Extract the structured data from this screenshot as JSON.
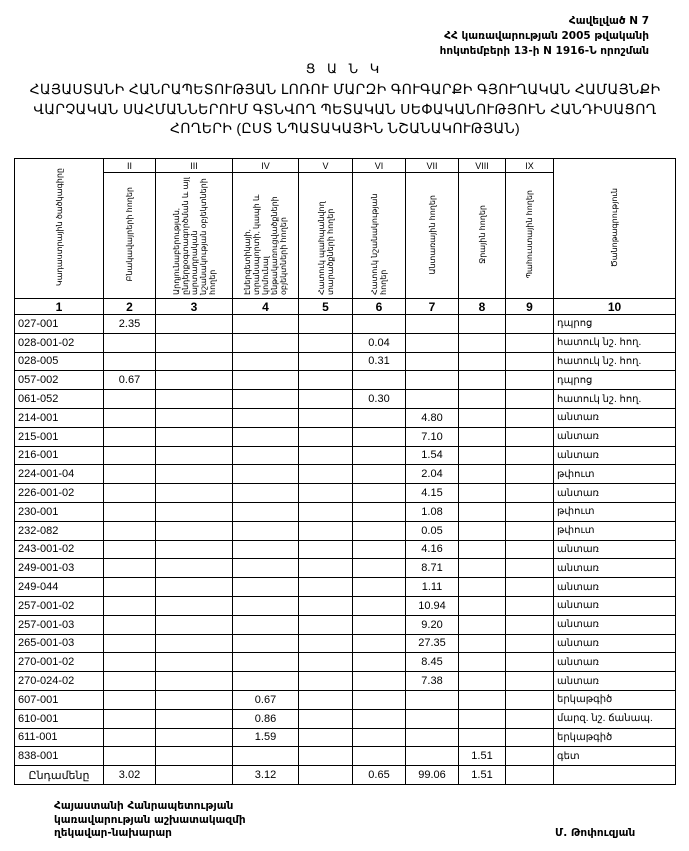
{
  "annex": {
    "line1": "Հավելված N 7",
    "line2": "ՀՀ կառավարության 2005 թվականի",
    "line3": "հոկտեմբերի 13-ի N 1916-Ն որոշման"
  },
  "list_label": "Ց Ա Ն Կ",
  "title": {
    "line1": "ՀԱՅԱՍՏԱՆԻ ՀԱՆՐԱՊԵՏՈՒԹՅԱՆ ԼՈՌՈՒ ՄԱՐԶԻ ԳՈՒԳԱՐՔԻ ԳՅՈՒՂԱԿԱՆ ՀԱՄԱՅՆՔԻ",
    "line2": "ՎԱՐՉԱԿԱՆ ՍԱՀՄԱՆՆԵՐՈՒՄ ԳՏՆՎՈՂ ՊԵՏԱԿԱՆ ՍԵՓԱԿԱՆՈՒԹՅՈՒՆ ՀԱՆԴԻՍԱՑՈՂ",
    "line3": "ՀՈՂԵՐԻ (ԸՍՏ ՆՊԱՏԱԿԱՅԻՆ ՆՇԱՆԱԿՈՒԹՅԱՆ)"
  },
  "table": {
    "columns": [
      {
        "roman": "",
        "label": "Կադաստրային ծածկագիրը",
        "number": "1"
      },
      {
        "roman": "II",
        "label": "Բնակավայրերի հողեր",
        "number": "2"
      },
      {
        "roman": "III",
        "label": "Արդյունաբերության, ընդերքօգտագործման և այլ արտադրական նշանակության օբյեկտների հողեր",
        "number": "3"
      },
      {
        "roman": "IV",
        "label": "Էներգետիկայի, տրանսպորտի, կապի և կոմունալ ենթակառուցվածքների օբյեկտների հողեր",
        "number": "4"
      },
      {
        "roman": "V",
        "label": "Հատուկ պահպանվող տարածքների հողեր",
        "number": "5"
      },
      {
        "roman": "VI",
        "label": "Հատուկ նշանակության հողեր",
        "number": "6"
      },
      {
        "roman": "VII",
        "label": "Անտառային հողեր",
        "number": "7"
      },
      {
        "roman": "VIII",
        "label": "Ջրային հողեր",
        "number": "8"
      },
      {
        "roman": "IX",
        "label": "Պահուստային հողեր",
        "number": "9"
      },
      {
        "roman": "",
        "label": "Ծանոթագրություն",
        "number": "10"
      }
    ],
    "rows": [
      [
        "027-001",
        "2.35",
        "",
        "",
        "",
        "",
        "",
        "",
        "",
        "դպրոց"
      ],
      [
        "028-001-02",
        "",
        "",
        "",
        "",
        "0.04",
        "",
        "",
        "",
        "հատուկ նշ. հող."
      ],
      [
        "028-005",
        "",
        "",
        "",
        "",
        "0.31",
        "",
        "",
        "",
        "հատուկ նշ. հող."
      ],
      [
        "057-002",
        "0.67",
        "",
        "",
        "",
        "",
        "",
        "",
        "",
        "դպրոց"
      ],
      [
        "061-052",
        "",
        "",
        "",
        "",
        "0.30",
        "",
        "",
        "",
        "հատուկ նշ. հող."
      ],
      [
        "214-001",
        "",
        "",
        "",
        "",
        "",
        "4.80",
        "",
        "",
        "անտառ"
      ],
      [
        "215-001",
        "",
        "",
        "",
        "",
        "",
        "7.10",
        "",
        "",
        "անտառ"
      ],
      [
        "216-001",
        "",
        "",
        "",
        "",
        "",
        "1.54",
        "",
        "",
        "անտառ"
      ],
      [
        "224-001-04",
        "",
        "",
        "",
        "",
        "",
        "2.04",
        "",
        "",
        "թփուտ"
      ],
      [
        "226-001-02",
        "",
        "",
        "",
        "",
        "",
        "4.15",
        "",
        "",
        "անտառ"
      ],
      [
        "230-001",
        "",
        "",
        "",
        "",
        "",
        "1.08",
        "",
        "",
        "թփուտ"
      ],
      [
        "232-082",
        "",
        "",
        "",
        "",
        "",
        "0.05",
        "",
        "",
        "թփուտ"
      ],
      [
        "243-001-02",
        "",
        "",
        "",
        "",
        "",
        "4.16",
        "",
        "",
        "անտառ"
      ],
      [
        "249-001-03",
        "",
        "",
        "",
        "",
        "",
        "8.71",
        "",
        "",
        "անտառ"
      ],
      [
        "249-044",
        "",
        "",
        "",
        "",
        "",
        "1.11",
        "",
        "",
        "անտառ"
      ],
      [
        "257-001-02",
        "",
        "",
        "",
        "",
        "",
        "10.94",
        "",
        "",
        "անտառ"
      ],
      [
        "257-001-03",
        "",
        "",
        "",
        "",
        "",
        "9.20",
        "",
        "",
        "անտառ"
      ],
      [
        "265-001-03",
        "",
        "",
        "",
        "",
        "",
        "27.35",
        "",
        "",
        "անտառ"
      ],
      [
        "270-001-02",
        "",
        "",
        "",
        "",
        "",
        "8.45",
        "",
        "",
        "անտառ"
      ],
      [
        "270-024-02",
        "",
        "",
        "",
        "",
        "",
        "7.38",
        "",
        "",
        "անտառ"
      ],
      [
        "607-001",
        "",
        "",
        "0.67",
        "",
        "",
        "",
        "",
        "",
        "երկաթգիծ"
      ],
      [
        "610-001",
        "",
        "",
        "0.86",
        "",
        "",
        "",
        "",
        "",
        "մարզ. նշ. ճանապ."
      ],
      [
        "611-001",
        "",
        "",
        "1.59",
        "",
        "",
        "",
        "",
        "",
        "երկաթգիծ"
      ],
      [
        "838-001",
        "",
        "",
        "",
        "",
        "",
        "",
        "1.51",
        "",
        "գետ"
      ]
    ],
    "total": [
      "Ընդամենը",
      "3.02",
      "",
      "3.12",
      "",
      "0.65",
      "99.06",
      "1.51",
      "",
      ""
    ]
  },
  "signature": {
    "line1": "Հայաստանի Հանրապետության",
    "line2": "կառավարության աշխատակազմի",
    "line3": "ղեկավար-նախարար",
    "name": "Մ. Թոփուզյան"
  }
}
